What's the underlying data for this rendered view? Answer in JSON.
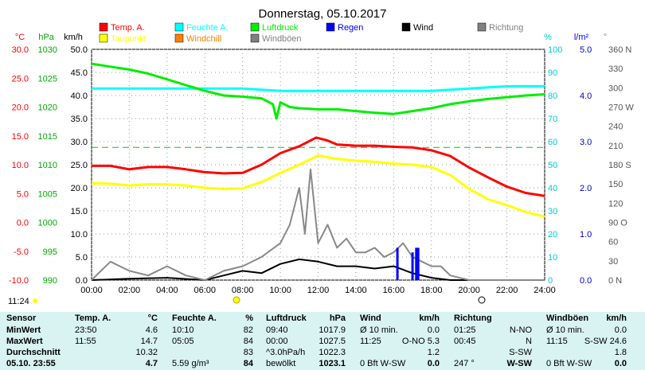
{
  "title": "Donnerstag, 05.10.2017",
  "colors": {
    "temp": "#ff0000",
    "dew": "#ffff00",
    "humidity": "#00ffff",
    "pressure": "#00ee00",
    "wind": "#000000",
    "gust": "#888888",
    "rain": "#0000ff",
    "direction": "#666666",
    "windchill": "#ff7f00"
  },
  "legend": [
    {
      "label": "Temp. A.",
      "color": "#ff0000"
    },
    {
      "label": "Feuchte A.",
      "color": "#00ffff"
    },
    {
      "label": "Luftdruck",
      "color": "#00ee00"
    },
    {
      "label": "Regen",
      "color": "#0000ff"
    },
    {
      "label": "Wind",
      "color": "#000000"
    },
    {
      "label": "Richtung",
      "color": "#808080"
    },
    {
      "label": "Taupunkt",
      "color": "#ffff00"
    },
    {
      "label": "Windchill",
      "color": "#ff7f00"
    },
    {
      "label": "Windböen",
      "color": "#808080"
    }
  ],
  "axis_units": {
    "temp": "°C",
    "pressure": "hPa",
    "wind": "km/h",
    "humidity": "%",
    "rain": "l/m²",
    "direction": "°"
  },
  "cursor_time": "11:24",
  "chart_data": {
    "type": "line",
    "x_ticks": [
      "00:00",
      "02:00",
      "04:00",
      "06:00",
      "08:00",
      "10:00",
      "12:00",
      "14:00",
      "16:00",
      "18:00",
      "20:00",
      "22:00",
      "24:00"
    ],
    "x_range": [
      0,
      24
    ],
    "axes": {
      "temp": {
        "range": [
          -10,
          30
        ],
        "ticks": [
          "30.0",
          "25.0",
          "20.0",
          "15.0",
          "10.0",
          "5.0",
          "0.0",
          "-5.0",
          "-10.0"
        ]
      },
      "pressure": {
        "range": [
          990,
          1030
        ],
        "ticks": [
          "1030",
          "1025",
          "1020",
          "1015",
          "1010",
          "1005",
          "1000",
          "995",
          "990"
        ]
      },
      "wind": {
        "range": [
          0,
          50
        ],
        "ticks": [
          "50.0",
          "45.0",
          "40.0",
          "35.0",
          "30.0",
          "25.0",
          "20.0",
          "15.0",
          "10.0",
          "5.0",
          "0.0"
        ]
      },
      "humidity": {
        "range": [
          0,
          100
        ],
        "ticks": [
          "100",
          "90",
          "80",
          "70",
          "60",
          "50",
          "40",
          "30",
          "20",
          "10",
          "0"
        ]
      },
      "rain": {
        "range": [
          0,
          5
        ],
        "ticks": [
          "5.0",
          "4.0",
          "3.0",
          "2.0",
          "1.0",
          "0.0"
        ]
      },
      "direction": {
        "range": [
          0,
          360
        ],
        "ticks": [
          "360 N",
          "330",
          "300",
          "270 W",
          "240",
          "210",
          "180 S",
          "150",
          "120",
          "90 O",
          "60",
          "30",
          "0 N"
        ]
      }
    },
    "series": [
      {
        "name": "Temp. A.",
        "axis": "temp",
        "color": "#ff0000",
        "x": [
          0,
          1,
          2,
          3,
          4,
          5,
          6,
          7,
          8,
          9,
          10,
          11,
          11.9,
          12.5,
          13,
          14,
          15,
          16,
          17,
          18,
          19,
          20,
          21,
          22,
          23,
          24
        ],
        "y": [
          9.8,
          9.8,
          9.2,
          9.6,
          9.6,
          9.2,
          8.7,
          8.5,
          8.6,
          10.0,
          12.0,
          13.2,
          14.7,
          14.2,
          13.5,
          13.3,
          13.3,
          13.1,
          13.0,
          12.5,
          11.5,
          9.5,
          7.8,
          6.2,
          5.1,
          4.6
        ]
      },
      {
        "name": "Taupunkt",
        "axis": "temp",
        "color": "#ffff00",
        "x": [
          0,
          1,
          2,
          3,
          4,
          5,
          6,
          7,
          8,
          9,
          10,
          11,
          12,
          13,
          14,
          15,
          16,
          17,
          18,
          19,
          20,
          21,
          22,
          23,
          24
        ],
        "y": [
          6.8,
          6.7,
          6.4,
          6.6,
          6.6,
          6.4,
          6.0,
          5.8,
          5.9,
          7.0,
          8.6,
          10.0,
          11.6,
          11.0,
          10.7,
          10.5,
          10.2,
          10.0,
          9.6,
          8.2,
          5.8,
          4.0,
          3.0,
          1.8,
          1.0
        ]
      },
      {
        "name": "Feuchte A.",
        "axis": "humidity",
        "color": "#00ffff",
        "x": [
          0,
          2,
          4,
          6,
          8,
          10,
          12,
          14,
          16,
          18,
          20,
          22,
          24
        ],
        "y": [
          83,
          83,
          83,
          83,
          83,
          82,
          82,
          82,
          82,
          82,
          83,
          84,
          84
        ]
      },
      {
        "name": "Luftdruck",
        "axis": "pressure",
        "color": "#00ee00",
        "x": [
          0,
          1,
          2,
          3,
          4,
          5,
          6,
          7,
          8,
          9,
          9.6,
          9.8,
          10,
          10.5,
          11,
          12,
          13,
          14,
          15,
          16,
          17,
          18,
          19,
          20,
          21,
          22,
          23,
          24
        ],
        "y": [
          1027.5,
          1027.0,
          1026.5,
          1025.8,
          1024.8,
          1023.8,
          1022.8,
          1022.0,
          1021.8,
          1021.5,
          1020.5,
          1018.0,
          1020.8,
          1020.0,
          1019.8,
          1019.6,
          1019.6,
          1019.3,
          1019.0,
          1018.8,
          1019.3,
          1019.8,
          1020.5,
          1021.0,
          1021.4,
          1021.7,
          1022.0,
          1022.2
        ]
      },
      {
        "name": "Wind",
        "axis": "wind",
        "color": "#000000",
        "x": [
          0,
          2,
          4,
          6,
          7,
          8,
          9,
          10,
          11,
          12,
          13,
          14,
          15,
          16,
          17,
          18,
          19,
          20,
          21,
          22,
          23,
          24
        ],
        "y": [
          0,
          0.3,
          0.5,
          0,
          1.0,
          2.0,
          1.5,
          3.5,
          4.5,
          4.0,
          3.0,
          3.0,
          2.5,
          3.0,
          1.5,
          0.5,
          0,
          0,
          0,
          0,
          0,
          0
        ]
      },
      {
        "name": "Windböen",
        "axis": "wind",
        "color": "#888888",
        "x": [
          0,
          1,
          2,
          3,
          4,
          5,
          6,
          7,
          8,
          9,
          10,
          10.5,
          11,
          11.3,
          11.6,
          12,
          12.5,
          13,
          13.5,
          14,
          14.5,
          15,
          15.5,
          16,
          16.5,
          17,
          17.5,
          18,
          18.5,
          19,
          20,
          21,
          22,
          23,
          24
        ],
        "y": [
          0,
          4,
          2,
          1,
          3,
          1,
          0,
          2,
          3,
          5,
          8,
          12,
          20,
          10,
          24,
          8,
          12,
          7,
          9,
          6,
          6,
          7,
          5,
          6,
          8,
          5,
          4,
          3,
          3,
          1,
          0,
          0,
          0,
          0,
          0
        ]
      },
      {
        "name": "Regen",
        "axis": "rain",
        "color": "#0000ff",
        "type": "bar",
        "x": [
          16.2,
          17.0,
          17.2,
          17.3
        ],
        "y": [
          0.7,
          0.6,
          0.7,
          0.7
        ]
      }
    ],
    "reference_lines": [
      {
        "axis": "temp",
        "value": 13.0,
        "color": "#00cc00",
        "style": "dashed"
      }
    ]
  },
  "table": {
    "headers": {
      "sensor": "Sensor",
      "temp": "Temp. A.",
      "temp_unit": "°C",
      "hum": "Feuchte A.",
      "hum_unit": "%",
      "press": "Luftdruck",
      "press_unit": "hPa",
      "wind": "Wind",
      "wind_unit": "km/h",
      "dir": "Richtung",
      "gust": "Windböen",
      "gust_unit": "km/h"
    },
    "rows": [
      {
        "label": "MinWert",
        "temp_time": "23:50",
        "temp_val": "4.6",
        "hum_time": "10:10",
        "hum_val": "82",
        "press_time": "09:40",
        "press_val": "1017.9",
        "wind_time": "Ø 10 min.",
        "wind_val": "0.0",
        "dir_time": "01:25",
        "dir_val": "N-NO",
        "gust_time": "Ø 10 min.",
        "gust_val": "0.0"
      },
      {
        "label": "MaxWert",
        "temp_time": "11:55",
        "temp_val": "14.7",
        "hum_time": "05:05",
        "hum_val": "84",
        "press_time": "00:00",
        "press_val": "1027.5",
        "wind_time": "11:25",
        "wind_val": "O-NO 5.3",
        "dir_time": "00:45",
        "dir_val": "N",
        "gust_time": "11:15",
        "gust_val": "S-SW 24.6"
      },
      {
        "label": "Durchschnitt",
        "temp_time": "",
        "temp_val": "10.32",
        "hum_time": "",
        "hum_val": "83",
        "press_time": "^3.0hPa/h",
        "press_val": "1022.3",
        "wind_time": "",
        "wind_val": "1.2",
        "dir_time": "",
        "dir_val": "S-SW",
        "gust_time": "",
        "gust_val": "1.8"
      },
      {
        "label": "05.10. 23:55",
        "temp_time": "",
        "temp_val": "4.7",
        "hum_time": "5.59 g/m³",
        "hum_val": "84",
        "press_time": "bewölkt",
        "press_val": "1023.1",
        "wind_time": "0 Bft W-SW",
        "wind_val": "0.0",
        "dir_time": "247 °",
        "dir_val": "W-SW",
        "gust_time": "0 Bft W-SW",
        "gust_val": "0.0"
      }
    ]
  }
}
